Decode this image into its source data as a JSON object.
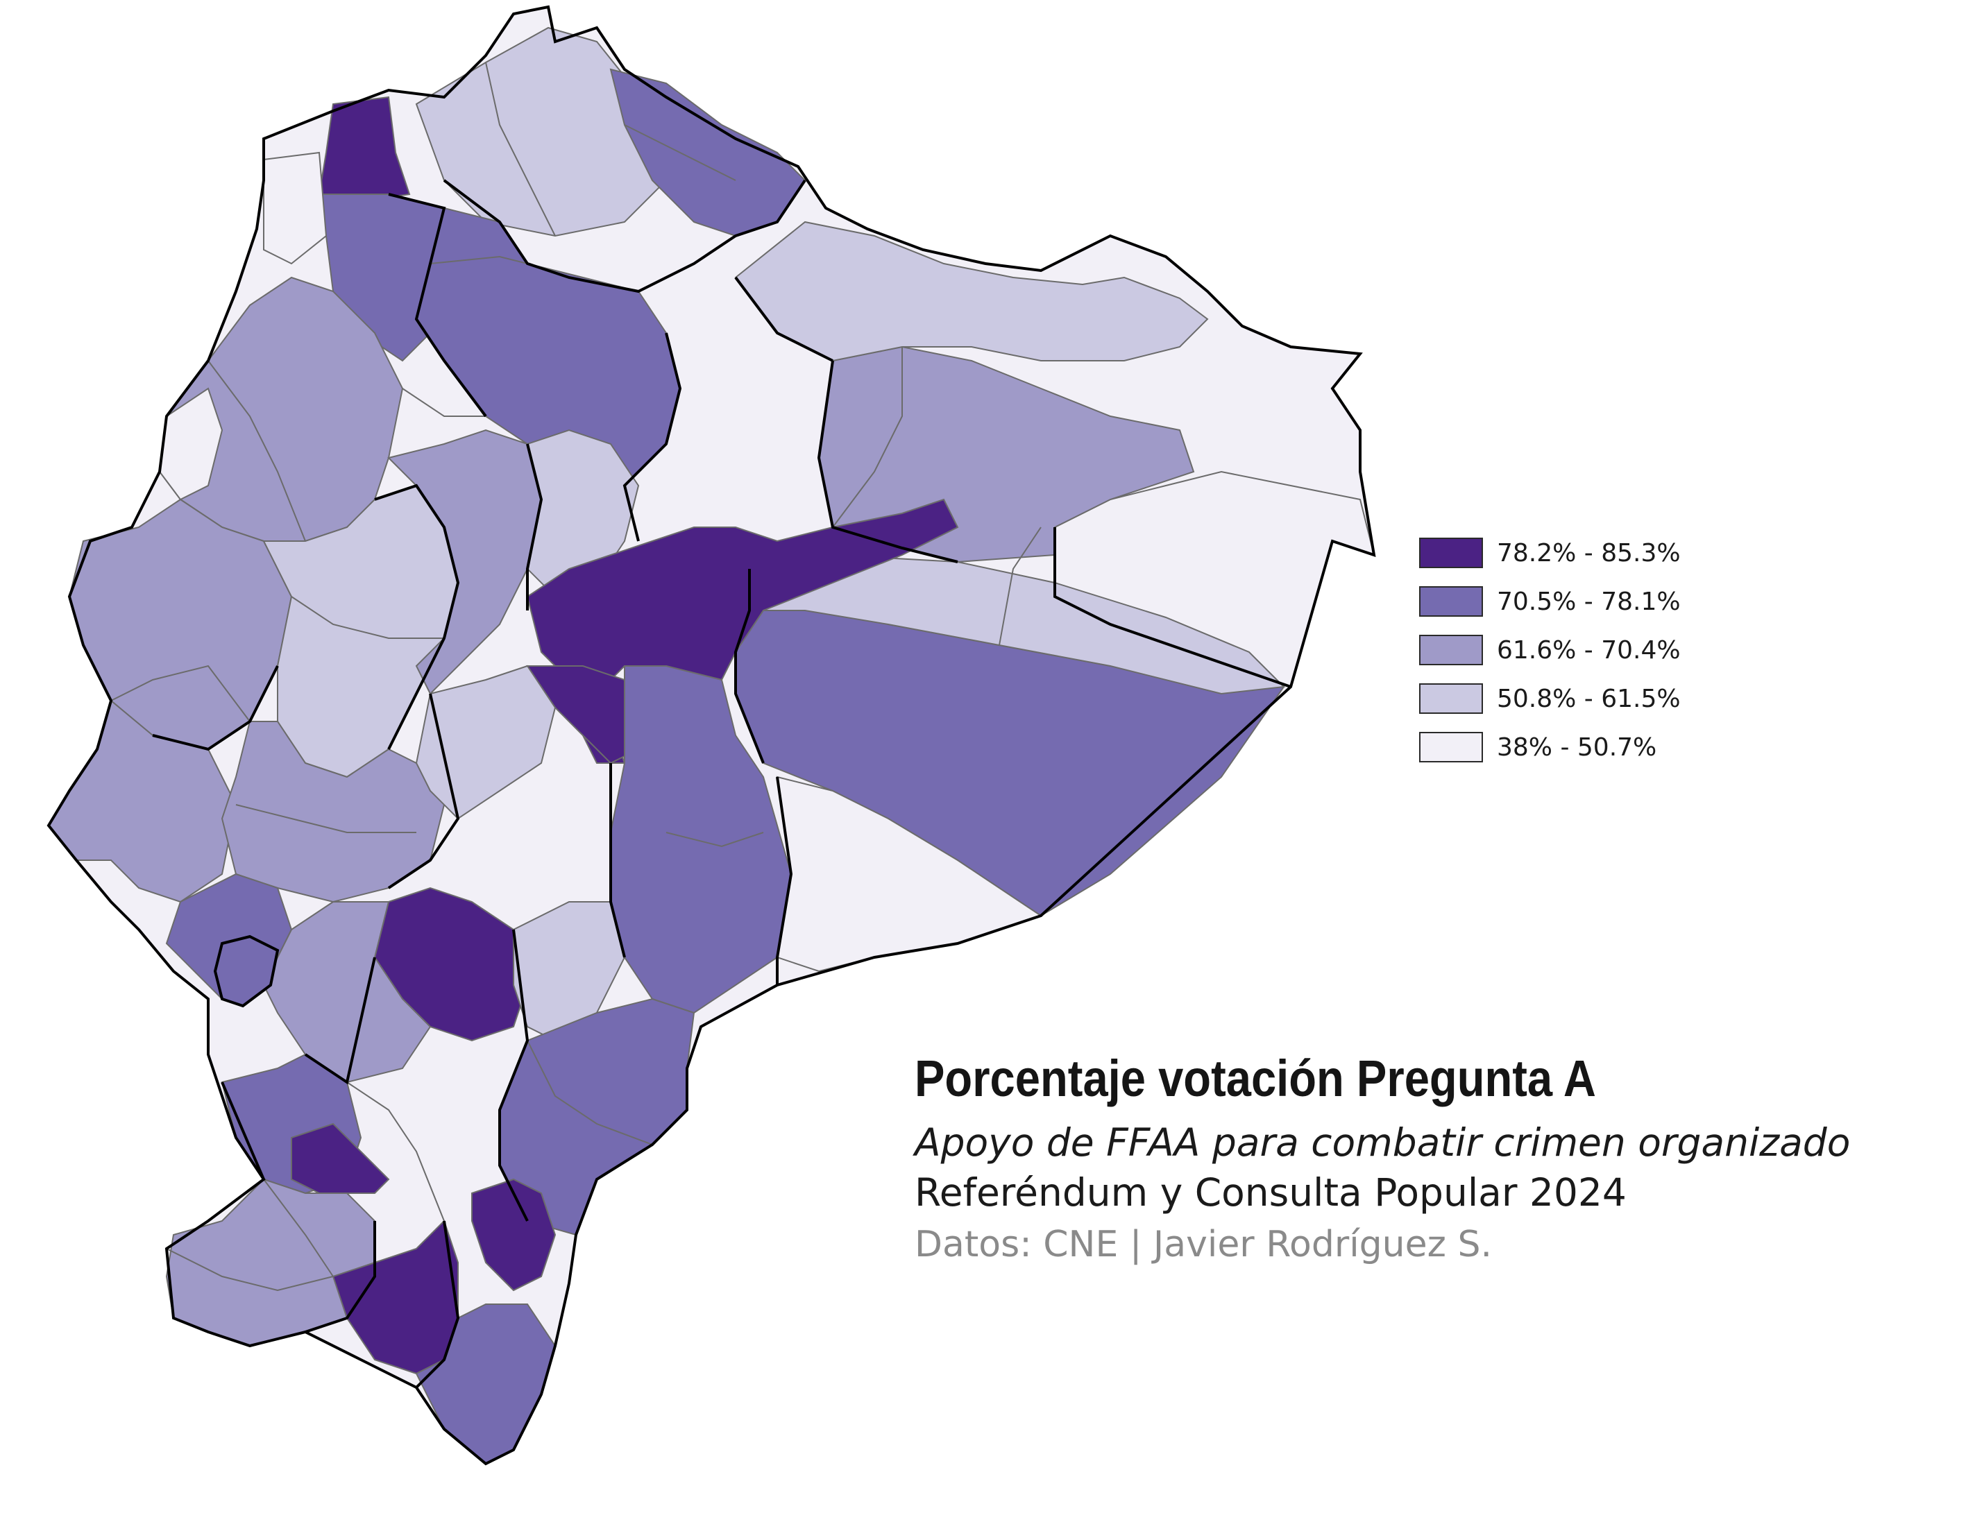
{
  "colors": {
    "class1": "#4b2284",
    "class2": "#756bb0",
    "class3": "#9f9ac8",
    "class4": "#cbc9e2",
    "class5": "#f2f0f7",
    "boundary": "#000000",
    "canton_line": "#6b6b6b"
  },
  "legend": {
    "items": [
      {
        "label": "78.2% - 85.3%",
        "color": "#4b2284"
      },
      {
        "label": "70.5% - 78.1%",
        "color": "#756bb0"
      },
      {
        "label": "61.6% - 70.4%",
        "color": "#9f9ac8"
      },
      {
        "label": "50.8% - 61.5%",
        "color": "#cbc9e2"
      },
      {
        "label": "38% - 50.7%",
        "color": "#f2f0f7"
      }
    ]
  },
  "title": {
    "main": "Porcentaje votación Pregunta A",
    "subtitle": "Apoyo de FFAA para combatir crimen organizado",
    "event": "Referéndum y Consulta Popular 2024",
    "credit": "Datos: CNE | Javier Rodríguez S."
  }
}
